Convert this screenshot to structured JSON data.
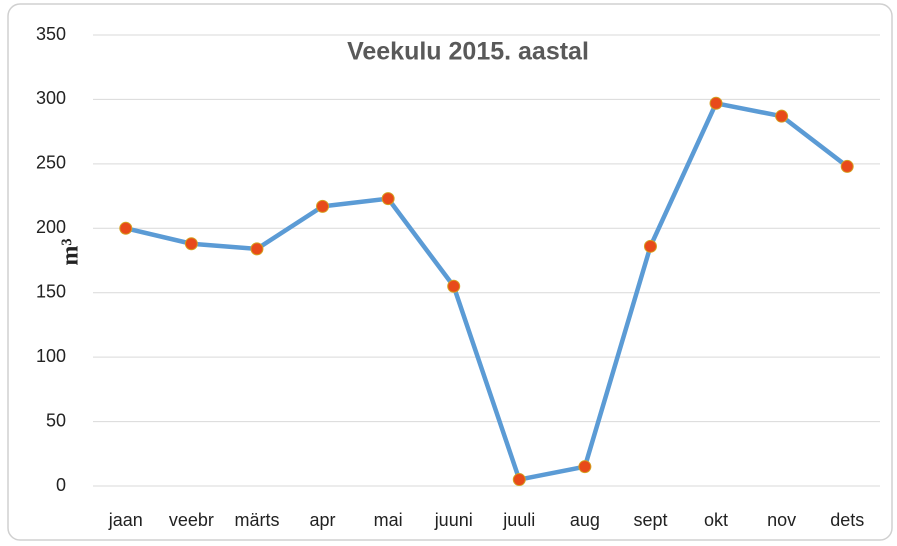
{
  "chart_data": {
    "type": "line",
    "title": "Veekulu 2015. aastal",
    "y_label": "m³",
    "categories": [
      "jaan",
      "veebr",
      "märts",
      "apr",
      "mai",
      "juuni",
      "juuli",
      "aug",
      "sept",
      "okt",
      "nov",
      "dets"
    ],
    "series": [
      {
        "name": "Veekulu",
        "color": "#5b9bd5",
        "marker_color": "#e84a1a",
        "values": [
          200,
          188,
          184,
          217,
          223,
          155,
          5,
          15,
          186,
          297,
          287,
          248
        ]
      }
    ],
    "ylim": [
      0,
      350
    ],
    "yticks": [
      0,
      50,
      100,
      150,
      200,
      250,
      300,
      350
    ],
    "grid": true
  }
}
